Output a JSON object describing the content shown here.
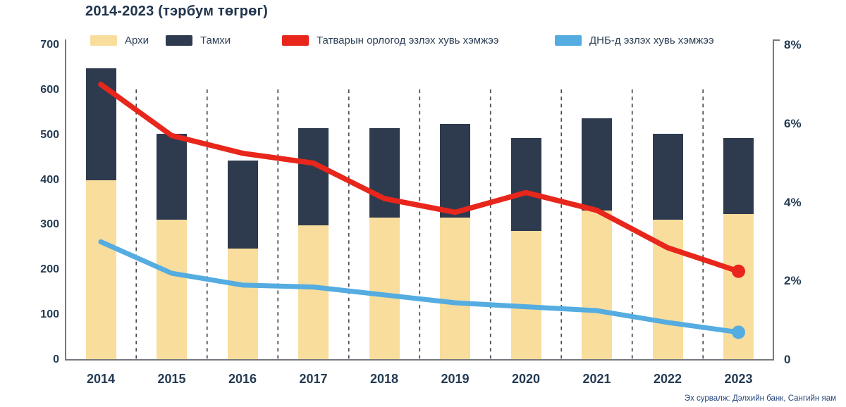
{
  "title": "2014-2023 (тэрбум төгрөг)",
  "legend": [
    {
      "label": "Архи",
      "color": "#F9DD9C"
    },
    {
      "label": "Тамхи",
      "color": "#2E3B4E"
    },
    {
      "label": "Татварын орлогод эзлэх хувь хэмжээ",
      "color": "#E8261B"
    },
    {
      "label": "ДНБ-д эзлэх хувь хэмжээ",
      "color": "#54ACE0"
    }
  ],
  "source_note": "Эх сурвалж: Дэлхийн банк, Сангийн яам",
  "chart_data": {
    "type": "bar",
    "subtype": "stacked-bars-with-lines-combo",
    "title": "2014-2023 (тэрбум төгрөг)",
    "categories": [
      "2014",
      "2015",
      "2016",
      "2017",
      "2018",
      "2019",
      "2020",
      "2021",
      "2022",
      "2023"
    ],
    "bar_series": [
      {
        "name": "Архи",
        "axis": "left",
        "color": "#F9DD9C",
        "values": [
          400,
          312,
          248,
          299,
          317,
          317,
          286,
          332,
          312,
          324
        ]
      },
      {
        "name": "Тамхи",
        "axis": "left",
        "color": "#2E3B4E",
        "values": [
          248,
          191,
          195,
          216,
          198,
          208,
          207,
          205,
          191,
          169
        ]
      }
    ],
    "line_series": [
      {
        "name": "Татварын орлогод эзлэх хувь хэмжээ",
        "axis": "right",
        "color": "#E8261B",
        "values": [
          7.0,
          5.7,
          5.25,
          5.0,
          4.1,
          3.75,
          4.25,
          3.8,
          2.85,
          2.25
        ]
      },
      {
        "name": "ДНБ-д эзлэх хувь хэмжээ",
        "axis": "right",
        "color": "#54ACE0",
        "values": [
          3.0,
          2.2,
          1.9,
          1.85,
          1.65,
          1.45,
          1.35,
          1.25,
          0.95,
          0.7
        ]
      }
    ],
    "left_axis": {
      "min": 0,
      "max": 700,
      "step": 100,
      "ticks": [
        "0",
        "100",
        "200",
        "300",
        "400",
        "500",
        "600",
        "700"
      ]
    },
    "right_axis": {
      "min": 0,
      "max": 8,
      "step": 2,
      "ticks": [
        "0",
        "2%",
        "4%",
        "6%",
        "8%"
      ]
    },
    "stacked": true,
    "grid": "vertical-dashed-separators-between-years",
    "legend_position": "top"
  }
}
